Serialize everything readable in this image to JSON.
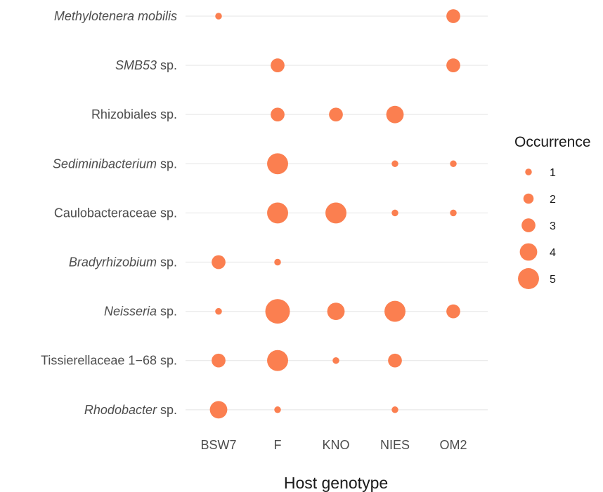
{
  "chart_data": {
    "type": "scatter",
    "xlabel": "Host genotype",
    "ylabel": "",
    "categories_x": [
      "BSW7",
      "F",
      "KNO",
      "NIES",
      "OM2"
    ],
    "categories_y": [
      {
        "label": "Methylotenera mobilis",
        "italic": "Methylotenera mobilis",
        "suffix": ""
      },
      {
        "label": "SMB53 sp.",
        "italic": "SMB53",
        "suffix": " sp."
      },
      {
        "label": "Rhizobiales sp.",
        "italic": "",
        "suffix": "Rhizobiales sp."
      },
      {
        "label": "Sediminibacterium sp.",
        "italic": "Sediminibacterium",
        "suffix": " sp."
      },
      {
        "label": "Caulobacteraceae sp.",
        "italic": "",
        "suffix": "Caulobacteraceae sp."
      },
      {
        "label": "Bradyrhizobium sp.",
        "italic": "Bradyrhizobium",
        "suffix": " sp."
      },
      {
        "label": "Neisseria sp.",
        "italic": "Neisseria",
        "suffix": " sp."
      },
      {
        "label": "Tissierellaceae 1−68 sp.",
        "italic": "",
        "suffix": "Tissierellaceae 1−68 sp."
      },
      {
        "label": "Rhodobacter sp.",
        "italic": "Rhodobacter",
        "suffix": " sp."
      }
    ],
    "points": [
      {
        "y": "Methylotenera mobilis",
        "x": "BSW7",
        "size": 1
      },
      {
        "y": "Methylotenera mobilis",
        "x": "OM2",
        "size": 3
      },
      {
        "y": "SMB53 sp.",
        "x": "F",
        "size": 3
      },
      {
        "y": "SMB53 sp.",
        "x": "OM2",
        "size": 3
      },
      {
        "y": "Rhizobiales sp.",
        "x": "F",
        "size": 3
      },
      {
        "y": "Rhizobiales sp.",
        "x": "KNO",
        "size": 3
      },
      {
        "y": "Rhizobiales sp.",
        "x": "NIES",
        "size": 4
      },
      {
        "y": "Sediminibacterium sp.",
        "x": "F",
        "size": 5
      },
      {
        "y": "Sediminibacterium sp.",
        "x": "NIES",
        "size": 1
      },
      {
        "y": "Sediminibacterium sp.",
        "x": "OM2",
        "size": 1
      },
      {
        "y": "Caulobacteraceae sp.",
        "x": "F",
        "size": 5
      },
      {
        "y": "Caulobacteraceae sp.",
        "x": "KNO",
        "size": 5
      },
      {
        "y": "Caulobacteraceae sp.",
        "x": "NIES",
        "size": 1
      },
      {
        "y": "Caulobacteraceae sp.",
        "x": "OM2",
        "size": 1
      },
      {
        "y": "Bradyrhizobium sp.",
        "x": "BSW7",
        "size": 3
      },
      {
        "y": "Bradyrhizobium sp.",
        "x": "F",
        "size": 1
      },
      {
        "y": "Neisseria sp.",
        "x": "BSW7",
        "size": 1
      },
      {
        "y": "Neisseria sp.",
        "x": "F",
        "size": 6
      },
      {
        "y": "Neisseria sp.",
        "x": "KNO",
        "size": 4
      },
      {
        "y": "Neisseria sp.",
        "x": "NIES",
        "size": 5
      },
      {
        "y": "Neisseria sp.",
        "x": "OM2",
        "size": 3
      },
      {
        "y": "Tissierellaceae 1−68 sp.",
        "x": "BSW7",
        "size": 3
      },
      {
        "y": "Tissierellaceae 1−68 sp.",
        "x": "F",
        "size": 5
      },
      {
        "y": "Tissierellaceae 1−68 sp.",
        "x": "KNO",
        "size": 1
      },
      {
        "y": "Tissierellaceae 1−68 sp.",
        "x": "NIES",
        "size": 3
      },
      {
        "y": "Rhodobacter sp.",
        "x": "BSW7",
        "size": 4
      },
      {
        "y": "Rhodobacter sp.",
        "x": "F",
        "size": 1
      },
      {
        "y": "Rhodobacter sp.",
        "x": "NIES",
        "size": 1
      }
    ],
    "legend": {
      "title": "Occurrence",
      "placement": "right",
      "entries": [
        1,
        2,
        3,
        4,
        5
      ]
    },
    "grid": "horizontal-major",
    "colors": {
      "point": "#FB7F50",
      "grid": "#EBEBEB"
    }
  }
}
